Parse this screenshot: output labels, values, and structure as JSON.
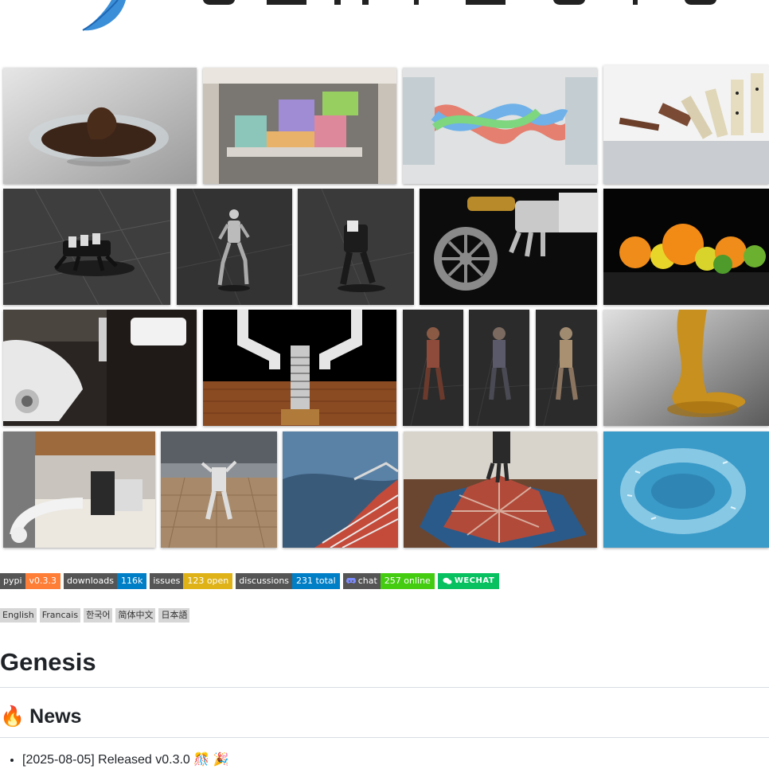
{
  "logo": {
    "alt": "Genesis logo banner",
    "icon": "feather-logo-icon"
  },
  "gallery": [
    {
      "name": "tile-chocolate-bowl",
      "theme": "chocolate"
    },
    {
      "name": "tile-tetris-blocks",
      "theme": "tetris"
    },
    {
      "name": "tile-twisted-rope",
      "theme": "rope"
    },
    {
      "name": "tile-dominoes",
      "theme": "dominoes"
    },
    {
      "name": "tile-quadruped-robot",
      "theme": "quadruped"
    },
    {
      "name": "tile-humanoid-robot-1",
      "theme": "humanoid"
    },
    {
      "name": "tile-humanoid-robot-2",
      "theme": "humanoid"
    },
    {
      "name": "tile-gear-robot-hand",
      "theme": "gear"
    },
    {
      "name": "tile-fruits",
      "theme": "fruits"
    },
    {
      "name": "tile-faucet-robot-arm",
      "theme": "faucet"
    },
    {
      "name": "tile-gripper-bolt",
      "theme": "gripper"
    },
    {
      "name": "tile-character-1",
      "theme": "character"
    },
    {
      "name": "tile-character-2",
      "theme": "character"
    },
    {
      "name": "tile-character-3",
      "theme": "character"
    },
    {
      "name": "tile-honey",
      "theme": "honey"
    },
    {
      "name": "tile-kitchen-robot-arm",
      "theme": "kitchen"
    },
    {
      "name": "tile-stadium-robot",
      "theme": "stadium"
    },
    {
      "name": "tile-water-stairs",
      "theme": "water"
    },
    {
      "name": "tile-cloth-hand",
      "theme": "cloth"
    },
    {
      "name": "tile-fish-school",
      "theme": "fish"
    }
  ],
  "badges": [
    {
      "name": "pypi-badge",
      "label": "pypi",
      "value": "v0.3.3",
      "color": "#fe7d37"
    },
    {
      "name": "downloads-badge",
      "label": "downloads",
      "value": "116k",
      "color": "#007ec6"
    },
    {
      "name": "issues-badge",
      "label": "issues",
      "value": "123 open",
      "color": "#dfb317"
    },
    {
      "name": "discussions-badge",
      "label": "discussions",
      "value": "231 total",
      "color": "#007ec6"
    },
    {
      "name": "chat-badge",
      "label": "chat",
      "value": "257 online",
      "color": "#4c1",
      "icon": "discord-icon"
    },
    {
      "name": "wechat-badge",
      "label": "WECHAT",
      "color": "#07c160",
      "icon": "wechat-icon"
    }
  ],
  "languages": [
    "English",
    "Francais",
    "한국어",
    "简体中文",
    "日本語"
  ],
  "title": "Genesis",
  "news_heading": {
    "emoji": "🔥",
    "text": "News"
  },
  "news_items": [
    "[2025-08-05] Released v0.3.0 🎊 🎉"
  ]
}
